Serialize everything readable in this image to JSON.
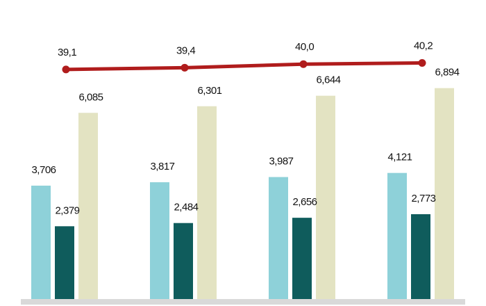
{
  "chart_data": {
    "type": "bar",
    "categories": [
      "",
      "",
      "",
      ""
    ],
    "series": [
      {
        "kind": "bar",
        "values": [
          3706,
          3817,
          3987,
          4121
        ],
        "labels": [
          "3,706",
          "3,817",
          "3,987",
          "4,121"
        ],
        "color": "#8ed1d9"
      },
      {
        "kind": "bar",
        "values": [
          2379,
          2484,
          2656,
          2773
        ],
        "labels": [
          "2,379",
          "2,484",
          "2,656",
          "2,773"
        ],
        "color": "#0f5c5c"
      },
      {
        "kind": "bar",
        "values": [
          6085,
          6301,
          6644,
          6894
        ],
        "labels": [
          "6,085",
          "6,301",
          "6,644",
          "6,894"
        ],
        "color": "#e3e3c2"
      },
      {
        "kind": "line",
        "values": [
          39.1,
          39.4,
          40.0,
          40.2
        ],
        "labels": [
          "39,1",
          "39,4",
          "40,0",
          "40,2"
        ],
        "color": "#b01c1c"
      }
    ],
    "ylim": [
      0,
      7500
    ],
    "line_ylim": [
      34.4,
      42.6
    ],
    "baseline_color": "#d9d9d9",
    "grid": false,
    "legend": "none"
  }
}
